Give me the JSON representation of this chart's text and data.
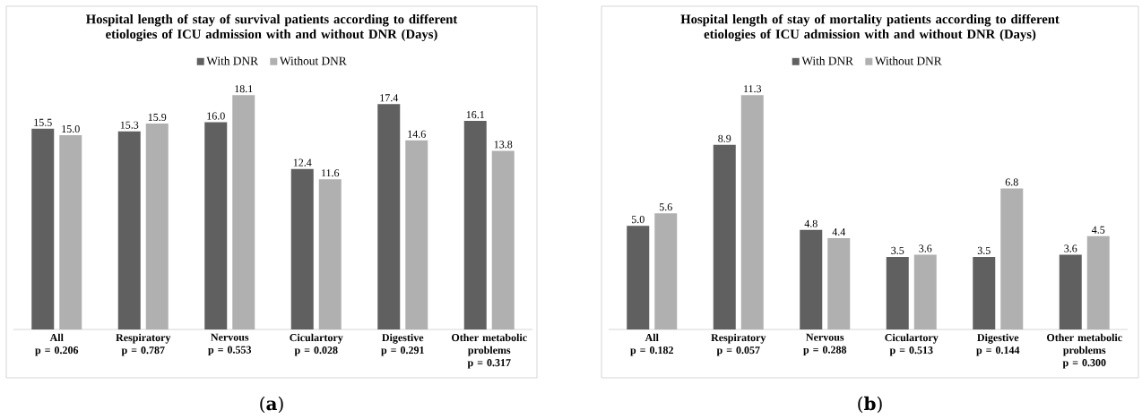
{
  "chart_data": [
    {
      "type": "bar",
      "title": "Hospital length of stay of survival patients according to different etiologies of ICU admission with and without DNR (Days)",
      "legend": "top",
      "categories": [
        "All",
        "Respiratory",
        "Nervous",
        "Ciculartory",
        "Digestive",
        "Other metabolic problems"
      ],
      "series": [
        {
          "name": "With DNR",
          "color": "#606060",
          "values": [
            15.5,
            15.3,
            16.0,
            12.4,
            17.4,
            16.1
          ],
          "value_labels": [
            "15.5",
            "15.3",
            "16.0",
            "12.4",
            "17.4",
            "16.1"
          ]
        },
        {
          "name": "Without DNR",
          "color": "#b0b0b0",
          "values": [
            15.0,
            15.9,
            18.1,
            11.6,
            14.6,
            13.8
          ],
          "value_labels": [
            "15.0",
            "15.9",
            "18.1",
            "11.6",
            "14.6",
            "13.8"
          ]
        }
      ],
      "annotations": [
        "p = 0.206",
        "p = 0.787",
        "p = 0.553",
        "p = 0.028",
        "p = 0.291",
        "p = 0.317",
        "(**a**)"
      ]
    },
    {
      "type": "bar",
      "title": "Hospital length of stay of mortality patients according to different etiologies of ICU admission with and without DNR (Days)",
      "legend": "top",
      "categories": [
        "All",
        "Respiratory",
        "Nervous",
        "Ciculartory",
        "Digestive",
        "Other metabolic problems"
      ],
      "series": [
        {
          "name": "With DNR",
          "color": "#606060",
          "values": [
            5.0,
            8.9,
            4.8,
            3.5,
            3.5,
            3.6
          ],
          "value_labels": [
            "5.0",
            "8.9",
            "4.8",
            "3.5",
            "3.5",
            "3.6"
          ]
        },
        {
          "name": "Without DNR",
          "color": "#b0b0b0",
          "values": [
            5.6,
            11.3,
            4.4,
            3.6,
            6.8,
            4.5
          ],
          "value_labels": [
            "5.6",
            "11.3",
            "4.4",
            "3.6",
            "6.8",
            "4.5"
          ]
        }
      ],
      "annotations": [
        "p = 0.182",
        "p = 0.057",
        "p = 0.288",
        "p = 0.513",
        "p = 0.144",
        "p = 0.300",
        "(**b**)"
      ]
    }
  ]
}
